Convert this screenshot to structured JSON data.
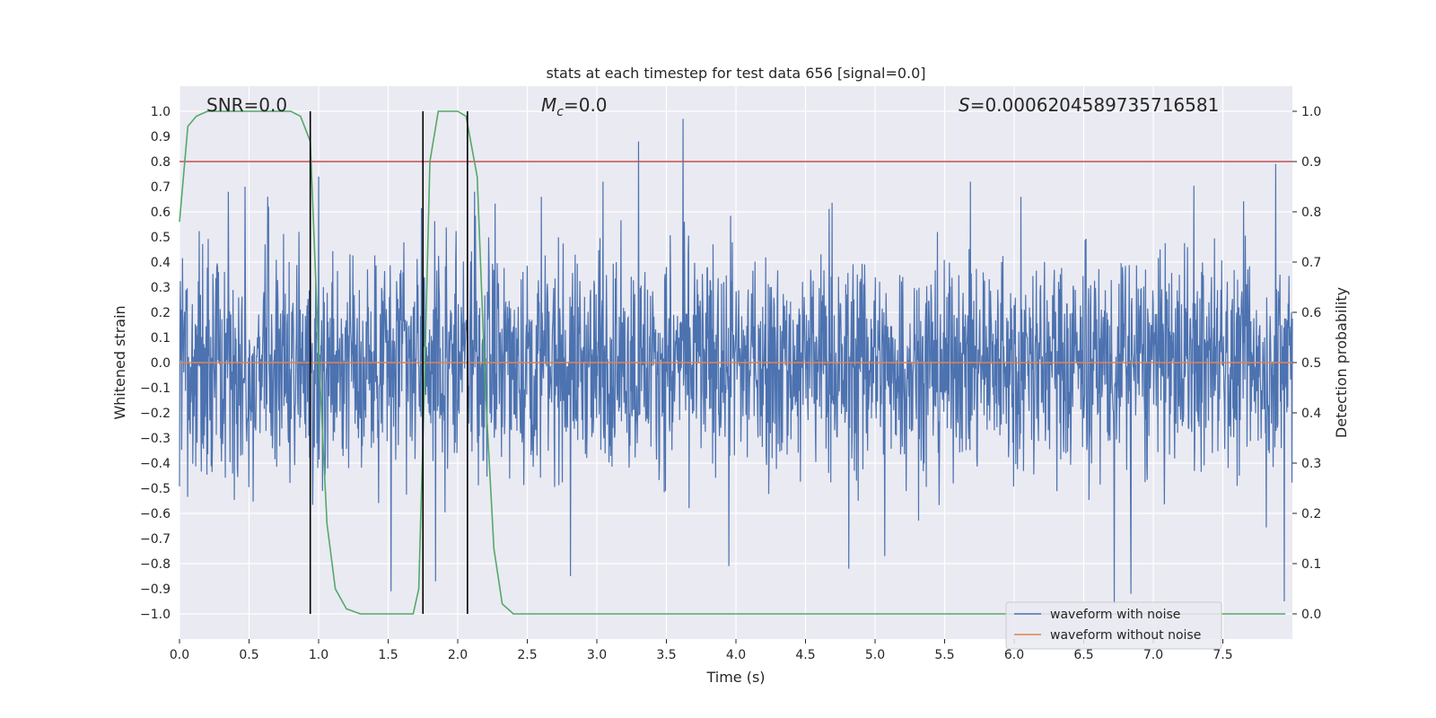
{
  "chart_data": {
    "type": "line",
    "title": "stats at each timestep for test data 656 [signal=0.0]",
    "xlabel": "Time (s)",
    "ylabel": "Whitened strain",
    "y2label": "Detection probability",
    "xlim": [
      0.0,
      8.0
    ],
    "ylim": [
      -1.1,
      1.1
    ],
    "y2lim": [
      -0.05,
      1.05
    ],
    "xticks": [
      0.0,
      0.5,
      1.0,
      1.5,
      2.0,
      2.5,
      3.0,
      3.5,
      4.0,
      4.5,
      5.0,
      5.5,
      6.0,
      6.5,
      7.0,
      7.5
    ],
    "xtick_labels": [
      "0.0",
      "0.5",
      "1.0",
      "1.5",
      "2.0",
      "2.5",
      "3.0",
      "3.5",
      "4.0",
      "4.5",
      "5.0",
      "5.5",
      "6.0",
      "6.5",
      "7.0",
      "7.5"
    ],
    "yticks": [
      1.0,
      0.9,
      0.8,
      0.7,
      0.6,
      0.5,
      0.4,
      0.3,
      0.2,
      0.1,
      0.0,
      -0.1,
      -0.2,
      -0.3,
      -0.4,
      -0.5,
      -0.6,
      -0.7,
      -0.8,
      -0.9,
      -1.0
    ],
    "ytick_labels": [
      "1.0",
      "0.9",
      "0.8",
      "0.7",
      "0.6",
      "0.5",
      "0.4",
      "0.3",
      "0.2",
      "0.1",
      "0.0",
      "−0.1",
      "−0.2",
      "−0.3",
      "−0.4",
      "−0.5",
      "−0.6",
      "−0.7",
      "−0.8",
      "−0.9",
      "−1.0"
    ],
    "y2ticks": [
      1.0,
      0.9,
      0.8,
      0.7,
      0.6,
      0.5,
      0.4,
      0.3,
      0.2,
      0.1,
      0.0
    ],
    "y2tick_labels": [
      "1.0",
      "0.9",
      "0.8",
      "0.7",
      "0.6",
      "0.5",
      "0.4",
      "0.3",
      "0.2",
      "0.1",
      "0.0"
    ],
    "grid": true,
    "legend_position": "bottom-right",
    "annotations": {
      "snr": "SNR=0.0",
      "mc_symbol": "M",
      "mc_sub": "c",
      "mc_value": "=0.0",
      "s_symbol": "S",
      "s_value": "=0.0006204589735716581"
    },
    "series": [
      {
        "name": "waveform with noise",
        "color": "#4c72b0",
        "axis": "left",
        "envelope_typical": 0.4,
        "peaks": [
          {
            "x": 0.35,
            "y": 0.68
          },
          {
            "x": 0.47,
            "y": 0.7
          },
          {
            "x": 0.64,
            "y": 0.62
          },
          {
            "x": 0.86,
            "y": 0.52
          },
          {
            "x": 1.0,
            "y": 0.74
          },
          {
            "x": 1.52,
            "y": -0.91
          },
          {
            "x": 1.84,
            "y": -0.87
          },
          {
            "x": 2.12,
            "y": 0.68
          },
          {
            "x": 2.6,
            "y": 0.66
          },
          {
            "x": 2.81,
            "y": -0.85
          },
          {
            "x": 3.3,
            "y": 0.88
          },
          {
            "x": 3.62,
            "y": 0.97
          },
          {
            "x": 3.95,
            "y": -0.81
          },
          {
            "x": 4.81,
            "y": -0.82
          },
          {
            "x": 5.07,
            "y": -0.77
          },
          {
            "x": 6.05,
            "y": 0.66
          },
          {
            "x": 6.72,
            "y": -0.96
          },
          {
            "x": 6.84,
            "y": -0.92
          },
          {
            "x": 7.88,
            "y": 0.79
          },
          {
            "x": 7.94,
            "y": -0.95
          }
        ]
      },
      {
        "name": "waveform without noise",
        "color": "#dd8452",
        "axis": "left",
        "x": [
          0.0,
          8.0
        ],
        "y": [
          0.0,
          0.0
        ]
      },
      {
        "color": "#55a868",
        "axis": "right",
        "x": [
          0.0,
          0.06,
          0.12,
          0.2,
          0.3,
          0.4,
          0.5,
          0.6,
          0.7,
          0.8,
          0.87,
          0.94,
          1.0,
          1.06,
          1.12,
          1.2,
          1.3,
          1.4,
          1.5,
          1.6,
          1.68,
          1.72,
          1.76,
          1.8,
          1.86,
          1.92,
          2.0,
          2.06,
          2.14,
          2.2,
          2.26,
          2.32,
          2.4,
          3.0,
          4.0,
          5.0,
          6.0,
          7.0,
          7.8,
          7.95
        ],
        "y": [
          0.78,
          0.97,
          0.99,
          1.0,
          1.0,
          1.0,
          1.0,
          1.0,
          1.0,
          1.0,
          0.99,
          0.94,
          0.52,
          0.18,
          0.05,
          0.01,
          0.0,
          0.0,
          0.0,
          0.0,
          0.0,
          0.05,
          0.45,
          0.9,
          1.0,
          1.0,
          1.0,
          0.99,
          0.87,
          0.44,
          0.13,
          0.02,
          0.0,
          0.0,
          0.0,
          0.0,
          0.0,
          0.0,
          0.0,
          0.0
        ]
      }
    ],
    "threshold": {
      "value": 0.9,
      "axis": "right",
      "color": "#c44e52"
    },
    "vlines": {
      "x": [
        0.94,
        1.75,
        2.07
      ],
      "color": "#000000",
      "y2_from": 0.0,
      "y2_to": 1.0
    }
  }
}
